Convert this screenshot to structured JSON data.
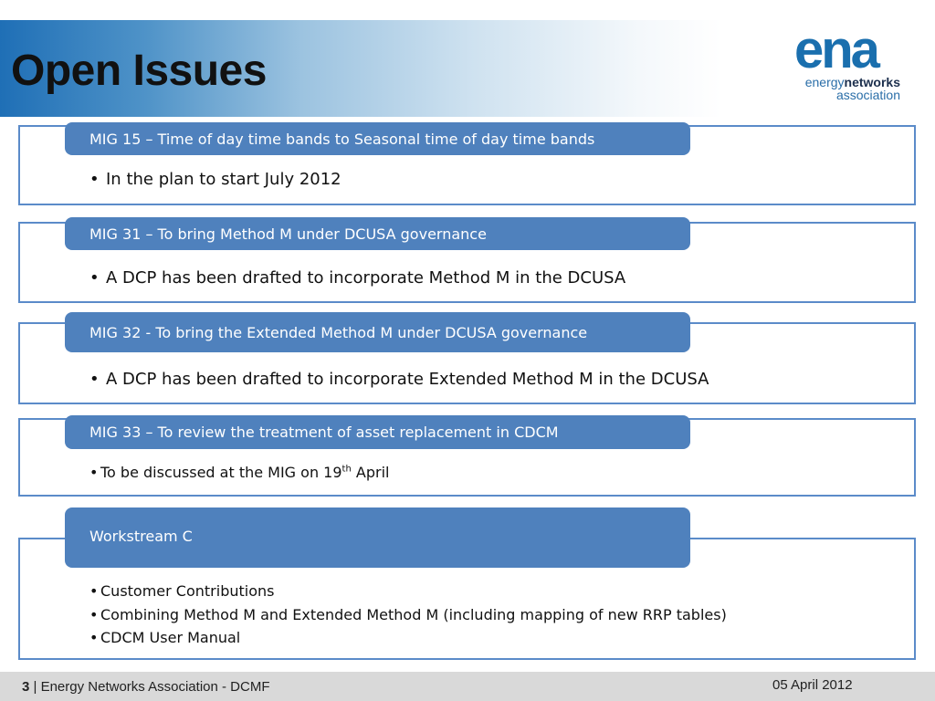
{
  "header": {
    "title": "Open Issues",
    "logo": {
      "word": "ena",
      "line1_prefix": "energy",
      "line1_bold": "networks",
      "line2": "association"
    }
  },
  "sections": [
    {
      "heading": "MIG 15 – Time of day time bands to Seasonal time of day time bands",
      "bullets": [
        "In the plan to start July 2012"
      ]
    },
    {
      "heading": "MIG  31 – To bring Method M under DCUSA governance",
      "bullets": [
        "A DCP has been drafted to incorporate Method M in the DCUSA"
      ]
    },
    {
      "heading": "MIG 32 - To bring the Extended Method M under DCUSA governance",
      "bullets": [
        "A DCP has been drafted to incorporate Extended Method M in the DCUSA"
      ]
    },
    {
      "heading": "MIG 33 – To review the treatment of asset replacement in CDCM",
      "bullet_prefix": "To be discussed at the MIG on 19",
      "bullet_sup": "th",
      "bullet_suffix": " April"
    },
    {
      "heading": "Workstream C",
      "bullets": [
        "Customer Contributions",
        "Combining Method M and Extended Method M (including mapping of new RRP tables)",
        "CDCM User Manual"
      ]
    }
  ],
  "footer": {
    "page_number": "3",
    "separator": " | ",
    "organisation": "Energy Networks Association - DCMF",
    "date": "05 April 2012"
  },
  "colors": {
    "accent_blue": "#4f81bd",
    "border_blue": "#5b8bc9",
    "logo_blue": "#1a6fae",
    "footer_gray": "#d9d9d9"
  }
}
